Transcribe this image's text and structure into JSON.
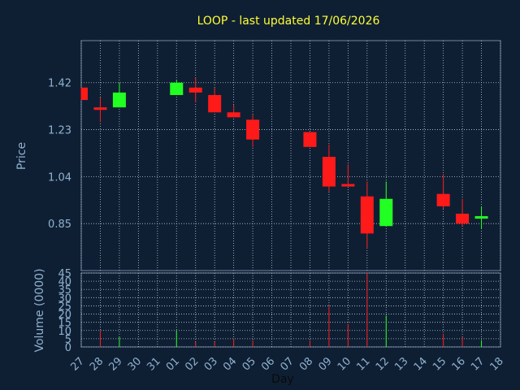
{
  "chart_data": {
    "type": "candlestick",
    "title": "LOOP - last updated 17/06/2026",
    "xlabel": "Day",
    "price_panel": {
      "ylabel": "Price",
      "yticks": [
        "0.85",
        "1.04",
        "1.23",
        "1.42"
      ],
      "ylim": [
        0.66,
        1.59
      ]
    },
    "volume_panel": {
      "ylabel": "Volume (0000)",
      "yticks": [
        "0",
        "5",
        "10",
        "15",
        "20",
        "25",
        "30",
        "35",
        "40",
        "45"
      ],
      "ylim": [
        0,
        45
      ]
    },
    "x_labels": [
      "27",
      "28",
      "29",
      "30",
      "31",
      "01",
      "02",
      "03",
      "04",
      "05",
      "06",
      "07",
      "08",
      "09",
      "10",
      "11",
      "12",
      "13",
      "14",
      "15",
      "16",
      "17",
      "18"
    ],
    "candles": [
      {
        "day": "27",
        "open": 1.4,
        "high": 1.4,
        "low": 1.35,
        "close": 1.35,
        "volume": 0
      },
      {
        "day": "28",
        "open": 1.32,
        "high": 1.36,
        "low": 1.26,
        "close": 1.31,
        "volume": 10
      },
      {
        "day": "29",
        "open": 1.32,
        "high": 1.42,
        "low": 1.32,
        "close": 1.38,
        "volume": 6
      },
      {
        "day": "01",
        "open": 1.37,
        "high": 1.43,
        "low": 1.37,
        "close": 1.42,
        "volume": 10
      },
      {
        "day": "02",
        "open": 1.4,
        "high": 1.44,
        "low": 1.34,
        "close": 1.38,
        "volume": 3
      },
      {
        "day": "03",
        "open": 1.37,
        "high": 1.4,
        "low": 1.3,
        "close": 1.3,
        "volume": 3
      },
      {
        "day": "04",
        "open": 1.3,
        "high": 1.33,
        "low": 1.28,
        "close": 1.28,
        "volume": 5
      },
      {
        "day": "05",
        "open": 1.27,
        "high": 1.29,
        "low": 1.16,
        "close": 1.19,
        "volume": 4
      },
      {
        "day": "08",
        "open": 1.22,
        "high": 1.22,
        "low": 1.16,
        "close": 1.16,
        "volume": 4
      },
      {
        "day": "09",
        "open": 1.12,
        "high": 1.17,
        "low": 0.98,
        "close": 1.0,
        "volume": 25
      },
      {
        "day": "10",
        "open": 1.01,
        "high": 1.09,
        "low": 1.0,
        "close": 1.0,
        "volume": 14
      },
      {
        "day": "11",
        "open": 0.96,
        "high": 1.02,
        "low": 0.75,
        "close": 0.81,
        "volume": 45
      },
      {
        "day": "12",
        "open": 0.84,
        "high": 1.02,
        "low": 0.84,
        "close": 0.95,
        "volume": 19
      },
      {
        "day": "15",
        "open": 0.97,
        "high": 1.05,
        "low": 0.91,
        "close": 0.92,
        "volume": 8
      },
      {
        "day": "16",
        "open": 0.89,
        "high": 0.95,
        "low": 0.84,
        "close": 0.85,
        "volume": 6
      },
      {
        "day": "17",
        "open": 0.87,
        "high": 0.92,
        "low": 0.83,
        "close": 0.88,
        "volume": 4
      }
    ],
    "grid": true
  },
  "colors": {
    "background": "#0f1f33",
    "axis": "#6f86a0",
    "grid": "#b9c6d4",
    "up": "#22ff22",
    "down": "#ff1a1a",
    "title": "#ffff33",
    "tick_text": "#8fb2cf"
  }
}
